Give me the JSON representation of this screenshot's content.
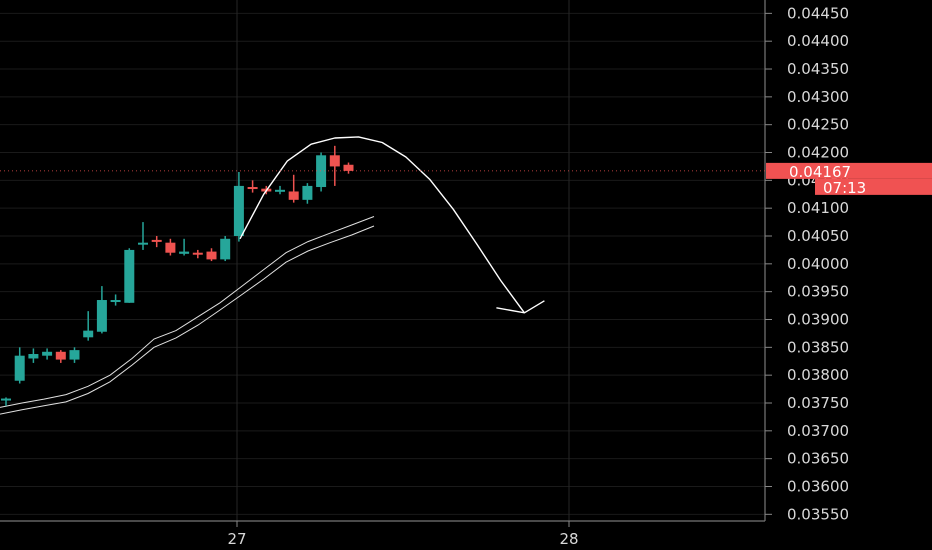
{
  "chart_data": {
    "type": "candlestick",
    "x_labels": [
      "27",
      "28"
    ],
    "y_ticks": [
      "0.04450",
      "0.04400",
      "0.04350",
      "0.04300",
      "0.04250",
      "0.04200",
      "0.04150",
      "0.04100",
      "0.04050",
      "0.04000",
      "0.03950",
      "0.03900",
      "0.03850",
      "0.03800",
      "0.03750",
      "0.03700",
      "0.03650",
      "0.03600",
      "0.03550"
    ],
    "ylim": [
      0.03538,
      0.04474
    ],
    "grid": true,
    "last_price": "0.04167",
    "countdown": "07:13",
    "colors": {
      "up": "#26a69a",
      "down": "#ef5350",
      "badge": "#f05252",
      "background": "#000000",
      "grid": "#1a1a1a",
      "overlay": "#e0e0e0"
    },
    "candles": [
      {
        "o": 0.03755,
        "h": 0.0376,
        "l": 0.03745,
        "c": 0.03758
      },
      {
        "o": 0.0379,
        "h": 0.0385,
        "l": 0.03785,
        "c": 0.03835
      },
      {
        "o": 0.0383,
        "h": 0.03848,
        "l": 0.03822,
        "c": 0.03838
      },
      {
        "o": 0.03835,
        "h": 0.03848,
        "l": 0.03828,
        "c": 0.03842
      },
      {
        "o": 0.03842,
        "h": 0.03845,
        "l": 0.03822,
        "c": 0.03828
      },
      {
        "o": 0.03828,
        "h": 0.0385,
        "l": 0.03822,
        "c": 0.03845
      },
      {
        "o": 0.03868,
        "h": 0.03915,
        "l": 0.03862,
        "c": 0.0388
      },
      {
        "o": 0.03878,
        "h": 0.0396,
        "l": 0.03875,
        "c": 0.03935
      },
      {
        "o": 0.03935,
        "h": 0.03945,
        "l": 0.03925,
        "c": 0.03935
      },
      {
        "o": 0.0393,
        "h": 0.04028,
        "l": 0.0393,
        "c": 0.04025
      },
      {
        "o": 0.04035,
        "h": 0.04075,
        "l": 0.04025,
        "c": 0.04038
      },
      {
        "o": 0.04043,
        "h": 0.0405,
        "l": 0.0403,
        "c": 0.0404
      },
      {
        "o": 0.04038,
        "h": 0.04045,
        "l": 0.04015,
        "c": 0.0402
      },
      {
        "o": 0.04018,
        "h": 0.04045,
        "l": 0.04015,
        "c": 0.04022
      },
      {
        "o": 0.0402,
        "h": 0.04025,
        "l": 0.0401,
        "c": 0.04018
      },
      {
        "o": 0.04022,
        "h": 0.04028,
        "l": 0.04005,
        "c": 0.04008
      },
      {
        "o": 0.04008,
        "h": 0.0405,
        "l": 0.04005,
        "c": 0.04045
      },
      {
        "o": 0.0405,
        "h": 0.04165,
        "l": 0.0404,
        "c": 0.0414
      },
      {
        "o": 0.04138,
        "h": 0.0415,
        "l": 0.04128,
        "c": 0.04135
      },
      {
        "o": 0.04135,
        "h": 0.0414,
        "l": 0.04125,
        "c": 0.0413
      },
      {
        "o": 0.0413,
        "h": 0.0414,
        "l": 0.04125,
        "c": 0.04133
      },
      {
        "o": 0.0413,
        "h": 0.0416,
        "l": 0.0411,
        "c": 0.04115
      },
      {
        "o": 0.04115,
        "h": 0.04145,
        "l": 0.04108,
        "c": 0.0414
      },
      {
        "o": 0.04138,
        "h": 0.042,
        "l": 0.0413,
        "c": 0.04195
      },
      {
        "o": 0.04195,
        "h": 0.04212,
        "l": 0.0414,
        "c": 0.04175
      },
      {
        "o": 0.04178,
        "h": 0.04182,
        "l": 0.04162,
        "c": 0.04167
      }
    ],
    "ma_upper": [
      0.03742,
      0.0375,
      0.03757,
      0.03765,
      0.0378,
      0.038,
      0.0383,
      0.03865,
      0.0388,
      0.03905,
      0.0393,
      0.0396,
      0.0399,
      0.0402,
      0.0404,
      0.04055,
      0.0407,
      0.04085
    ],
    "ma_lower": [
      0.0373,
      0.03738,
      0.03745,
      0.03752,
      0.03767,
      0.03788,
      0.03818,
      0.0385,
      0.03867,
      0.0389,
      0.03917,
      0.03945,
      0.03973,
      0.04003,
      0.04023,
      0.04038,
      0.04052,
      0.04068
    ],
    "projection_curve": [
      [
        0.04045
      ],
      [
        0.04125
      ],
      [
        0.04185
      ],
      [
        0.04215
      ],
      [
        0.04226
      ],
      [
        0.04228
      ],
      [
        0.04218
      ],
      [
        0.04192
      ],
      [
        0.04152
      ],
      [
        0.04098
      ],
      [
        0.04035
      ],
      [
        0.0397
      ],
      [
        0.03912
      ]
    ]
  }
}
